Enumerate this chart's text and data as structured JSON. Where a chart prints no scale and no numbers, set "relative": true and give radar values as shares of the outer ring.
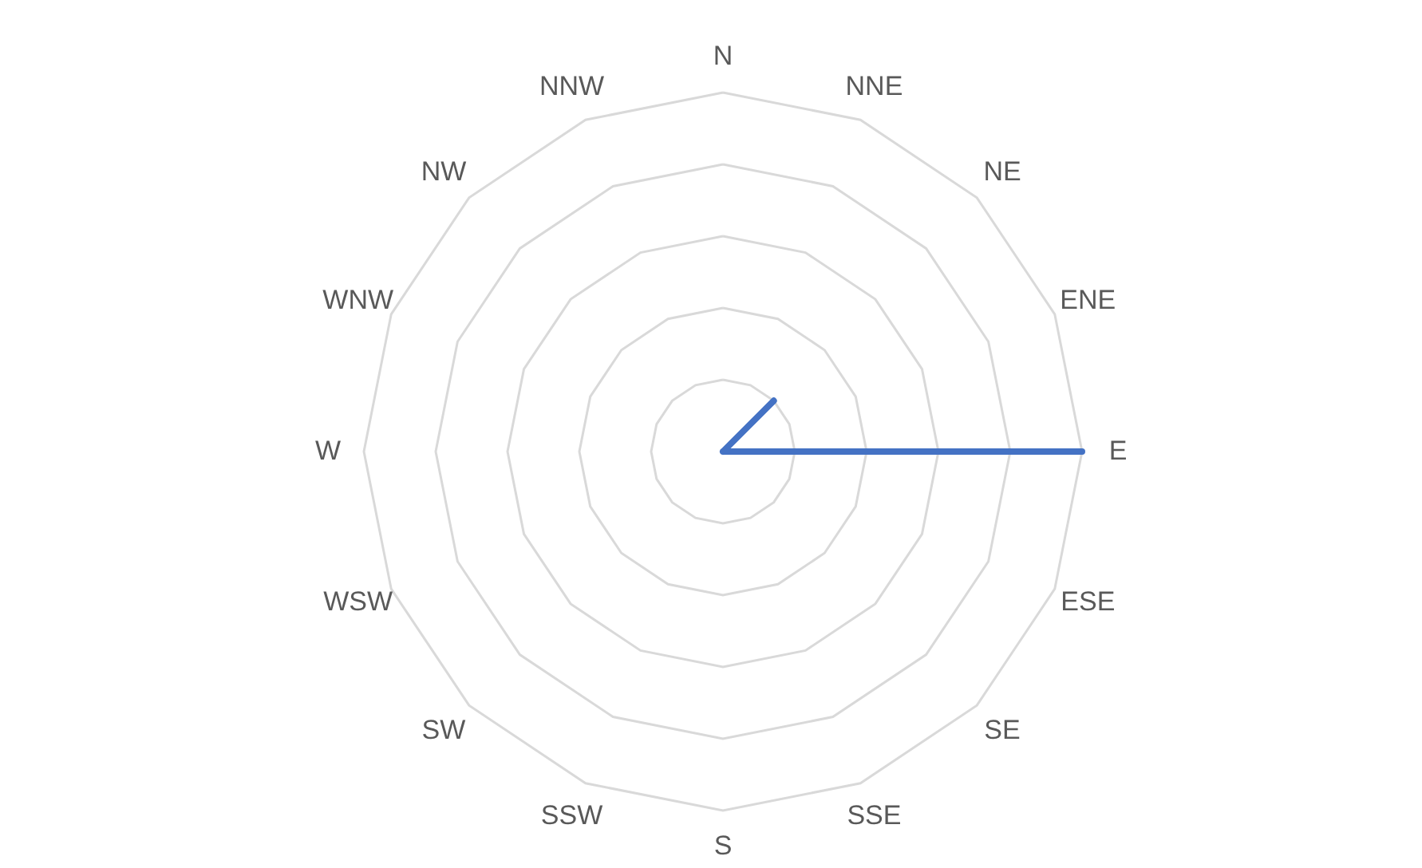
{
  "chart_data": {
    "type": "radar",
    "relative": true,
    "grid": true,
    "categories": [
      "N",
      "NNE",
      "NE",
      "ENE",
      "E",
      "ESE",
      "SE",
      "SSE",
      "S",
      "SSW",
      "SW",
      "WSW",
      "W",
      "WNW",
      "NW",
      "NNW"
    ],
    "series": [
      {
        "color": "#4472c4",
        "values": [
          0,
          0,
          0.2,
          0,
          1,
          0,
          0,
          0,
          0,
          0,
          0,
          0,
          0,
          0,
          0,
          0
        ]
      }
    ]
  }
}
